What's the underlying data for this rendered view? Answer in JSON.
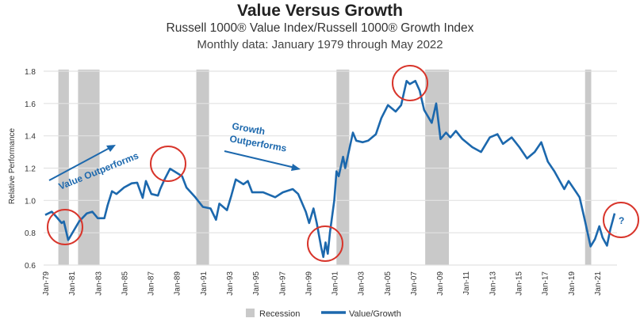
{
  "chart_data": {
    "type": "line",
    "title": "Value Versus Growth",
    "subtitle": "Russell 1000® Value Index/Russell 1000® Growth Index",
    "subtitle2": "Monthly data: January 1979 through May 2022",
    "xlabel": "",
    "ylabel": "Relative Performance",
    "ylim": [
      0.6,
      1.8
    ],
    "yticks": [
      "0.6",
      "0.8",
      "1.0",
      "1.2",
      "1.4",
      "1.6",
      "1.8"
    ],
    "xlim": [
      "1979-01",
      "2022-05"
    ],
    "xticks": [
      "Jan-79",
      "Jan-81",
      "Jan-83",
      "Jan-85",
      "Jan-87",
      "Jan-89",
      "Jan-91",
      "Jan-93",
      "Jan-95",
      "Jan-97",
      "Jan-99",
      "Jan-01",
      "Jan-03",
      "Jan-05",
      "Jan-07",
      "Jan-09",
      "Jan-11",
      "Jan-13",
      "Jan-15",
      "Jan-17",
      "Jan-19",
      "Jan-21"
    ],
    "grid": "horizontal",
    "legend_placement": "bottom",
    "legend": [
      "Recession",
      "Value/Growth"
    ],
    "colors": {
      "series": "#1c68ad",
      "recession": "#c9c9c9",
      "circle": "#d8352b",
      "grid": "#e2e2e2"
    },
    "recessions": [
      {
        "start": "1980-01",
        "end": "1980-07"
      },
      {
        "start": "1981-07",
        "end": "1982-11"
      },
      {
        "start": "1990-07",
        "end": "1991-03"
      },
      {
        "start": "2001-03",
        "end": "2001-11"
      },
      {
        "start": "2007-12",
        "end": "2009-06"
      },
      {
        "start": "2020-02",
        "end": "2020-04"
      }
    ],
    "series": [
      {
        "name": "Value/Growth",
        "x": [
          "1979-01",
          "1979-07",
          "1979-11",
          "1980-04",
          "1980-06",
          "1980-10",
          "1981-08",
          "1982-03",
          "1982-08",
          "1983-01",
          "1983-07",
          "1983-10",
          "1984-02",
          "1984-06",
          "1985-01",
          "1985-08",
          "1986-01",
          "1986-06",
          "1986-09",
          "1987-02",
          "1987-08",
          "1987-10",
          "1988-02",
          "1988-07",
          "1988-11",
          "1989-06",
          "1989-10",
          "1990-06",
          "1991-01",
          "1991-08",
          "1992-01",
          "1992-04",
          "1992-11",
          "1993-03",
          "1993-07",
          "1994-02",
          "1994-06",
          "1994-10",
          "1995-08",
          "1996-07",
          "1997-02",
          "1997-11",
          "1998-04",
          "1998-11",
          "1999-02",
          "1999-06",
          "1999-09",
          "2000-01",
          "2000-03",
          "2000-05",
          "2000-07",
          "2000-09",
          "2001-01",
          "2001-03",
          "2001-05",
          "2001-09",
          "2001-11",
          "2002-06",
          "2002-09",
          "2003-03",
          "2003-08",
          "2004-03",
          "2004-08",
          "2005-02",
          "2005-09",
          "2006-02",
          "2006-07",
          "2006-10",
          "2007-03",
          "2007-07",
          "2007-09",
          "2007-11",
          "2008-06",
          "2008-10",
          "2009-02",
          "2009-07",
          "2009-11",
          "2010-04",
          "2010-10",
          "2011-07",
          "2012-03",
          "2012-11",
          "2013-06",
          "2013-11",
          "2014-07",
          "2015-02",
          "2015-09",
          "2016-04",
          "2016-10",
          "2017-04",
          "2017-10",
          "2018-07",
          "2018-11",
          "2019-06",
          "2019-09",
          "2020-02",
          "2020-07",
          "2020-11",
          "2021-03",
          "2021-06",
          "2021-10",
          "2022-01",
          "2022-05"
        ],
        "values": [
          0.91,
          0.93,
          0.9,
          0.86,
          0.87,
          0.755,
          0.87,
          0.92,
          0.93,
          0.89,
          0.89,
          0.97,
          1.057,
          1.04,
          1.08,
          1.106,
          1.11,
          1.016,
          1.12,
          1.04,
          1.03,
          1.07,
          1.13,
          1.196,
          1.18,
          1.15,
          1.08,
          1.02,
          0.96,
          0.95,
          0.88,
          0.98,
          0.94,
          1.03,
          1.13,
          1.1,
          1.12,
          1.05,
          1.05,
          1.02,
          1.05,
          1.07,
          1.04,
          0.93,
          0.86,
          0.95,
          0.86,
          0.71,
          0.65,
          0.74,
          0.67,
          0.8,
          1.0,
          1.18,
          1.15,
          1.27,
          1.2,
          1.42,
          1.37,
          1.36,
          1.37,
          1.41,
          1.51,
          1.59,
          1.55,
          1.59,
          1.74,
          1.72,
          1.74,
          1.68,
          1.62,
          1.56,
          1.48,
          1.6,
          1.38,
          1.42,
          1.39,
          1.43,
          1.38,
          1.33,
          1.3,
          1.39,
          1.41,
          1.35,
          1.39,
          1.33,
          1.26,
          1.3,
          1.36,
          1.24,
          1.18,
          1.07,
          1.12,
          1.05,
          1.02,
          0.87,
          0.715,
          0.76,
          0.84,
          0.77,
          0.72,
          0.82,
          0.92
        ]
      }
    ],
    "annotations": {
      "value_outperforms": "Value Outperforms",
      "growth_outperforms_1": "Growth",
      "growth_outperforms_2": "Outperforms",
      "question": "?"
    }
  }
}
